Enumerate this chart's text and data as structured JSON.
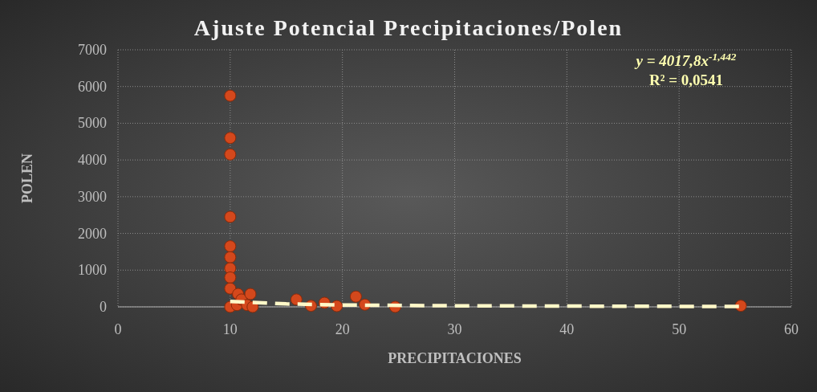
{
  "chart_data": {
    "type": "scatter",
    "title": "Ajuste Potencial Precipitaciones/Polen",
    "xlabel": "PRECIPITACIONES",
    "ylabel": "POLEN",
    "xlim": [
      0,
      60
    ],
    "xticks": [
      0,
      10,
      20,
      30,
      40,
      50,
      60
    ],
    "ylim": [
      0,
      7000
    ],
    "yticks": [
      0,
      1000,
      2000,
      3000,
      4000,
      5000,
      6000,
      7000
    ],
    "grid": true,
    "annotations": [
      "y = 4017,8x$^{-1,442}$",
      "R² = 0,0541"
    ],
    "series": [
      {
        "color": "#d4481c",
        "marker": "circle",
        "x": [
          10,
          10,
          10,
          10,
          10,
          10,
          10,
          10,
          10,
          10,
          10.6,
          10.7,
          11,
          11.5,
          11.8,
          12,
          15.9,
          17.2,
          18.4,
          19.5,
          21.2,
          22,
          24.7,
          55.5
        ],
        "values": [
          5750,
          4600,
          4150,
          2450,
          1650,
          1350,
          1050,
          800,
          500,
          0,
          50,
          350,
          200,
          50,
          350,
          0,
          200,
          30,
          110,
          20,
          280,
          60,
          0,
          30
        ]
      },
      {
        "type": "line",
        "color": "#fff8c8",
        "line_style": "dashed",
        "x": [
          10,
          15,
          20,
          30,
          40,
          55.5
        ],
        "values": [
          150,
          80,
          50,
          30,
          20,
          10
        ]
      }
    ]
  }
}
